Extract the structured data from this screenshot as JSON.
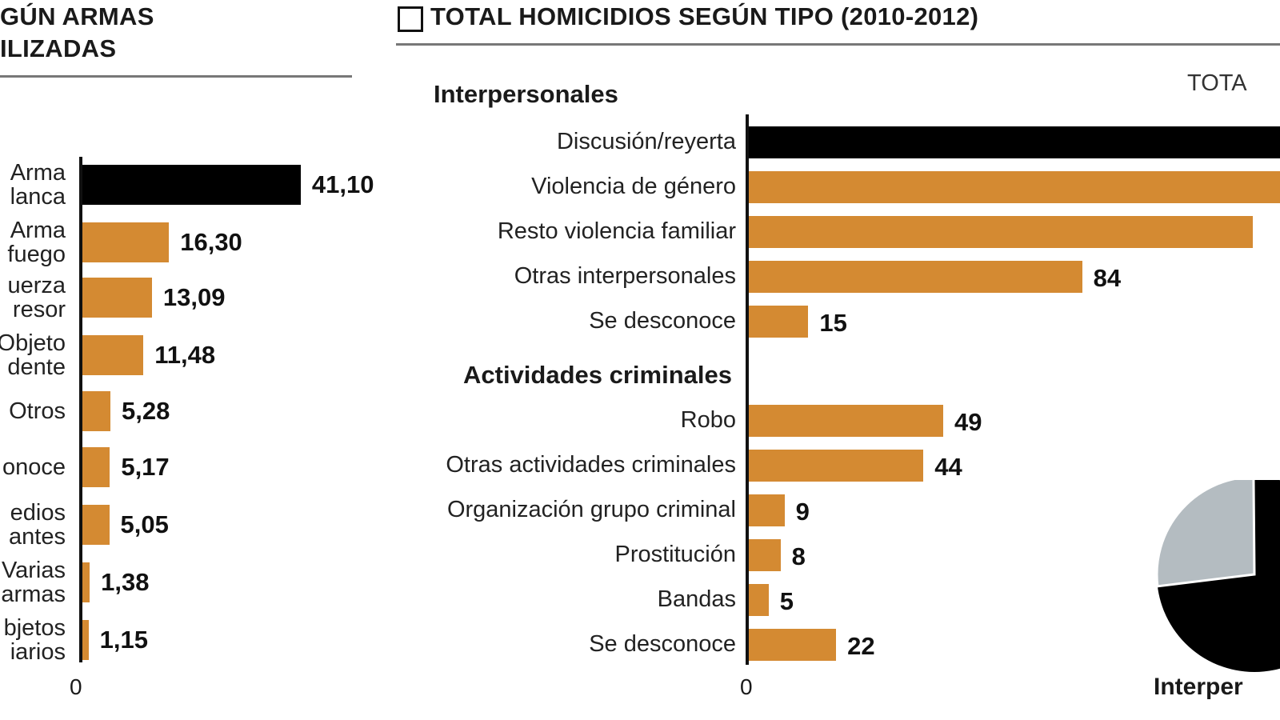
{
  "colors": {
    "highlight": "#000000",
    "bar": "#d48a32",
    "pie_other": "#b4bcc1"
  },
  "chart_data": [
    {
      "type": "bar",
      "orientation": "horizontal",
      "title": "GÚN ARMAS ILIZADAS",
      "title_lines": [
        "GÚN ARMAS",
        "ILIZADAS"
      ],
      "categories": [
        [
          "Arma",
          "lanca"
        ],
        [
          "Arma",
          "fuego"
        ],
        [
          "uerza",
          "resor"
        ],
        [
          "Objeto",
          "dente"
        ],
        [
          "Otros"
        ],
        [
          "onoce"
        ],
        [
          "edios",
          "antes"
        ],
        [
          "Varias",
          "armas"
        ],
        [
          "bjetos",
          "iarios"
        ]
      ],
      "values": [
        41.1,
        16.3,
        13.09,
        11.48,
        5.28,
        5.17,
        5.05,
        1.38,
        1.15
      ],
      "value_labels": [
        "41,10",
        "16,30",
        "13,09",
        "11,48",
        "5,28",
        "5,17",
        "5,05",
        "1,38",
        "1,15"
      ],
      "highlight_index": 0,
      "x_tick": "0"
    },
    {
      "type": "bar",
      "orientation": "horizontal",
      "title": "TOTAL HOMICIDIOS SEGÚN TIPO (2010-2012)",
      "groups": [
        {
          "name": "Interpersonales",
          "categories": [
            "Discusión/reyerta",
            "Violencia de género",
            "Resto violencia familiar",
            "Otras interpersonales",
            "Se desconoce"
          ],
          "values": [
            null,
            null,
            127,
            84,
            15
          ],
          "value_labels": [
            "",
            "",
            "",
            "84",
            "15"
          ]
        },
        {
          "name": "Actividades criminales",
          "categories": [
            "Robo",
            "Otras actividades criminales",
            "Organización grupo criminal",
            "Prostitución",
            "Bandas",
            "Se desconoce"
          ],
          "values": [
            49,
            44,
            9,
            8,
            5,
            22
          ],
          "value_labels": [
            "49",
            "44",
            "9",
            "8",
            "5",
            "22"
          ]
        }
      ],
      "highlight": "Discusión/reyerta",
      "x_tick": "0"
    },
    {
      "type": "pie",
      "title": "TOTA",
      "label": "Interper"
    }
  ]
}
